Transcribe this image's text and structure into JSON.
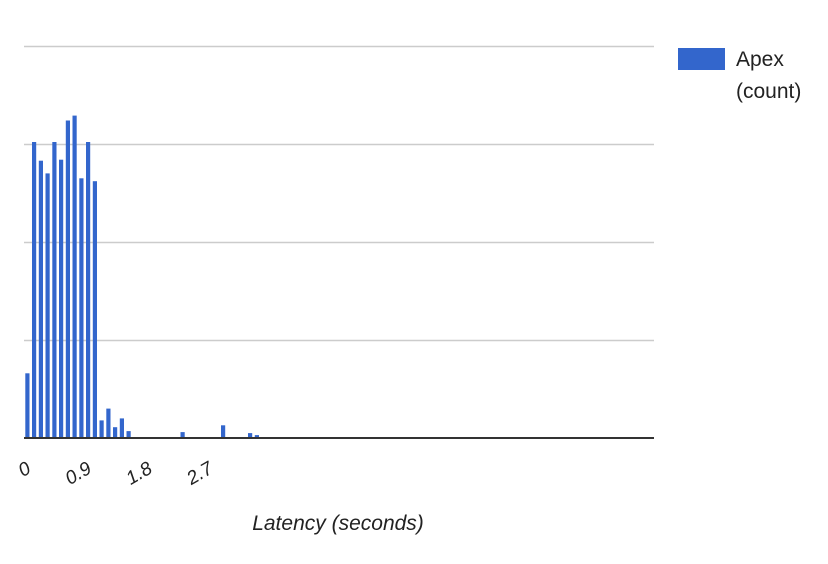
{
  "chart_data": {
    "type": "bar",
    "title": "",
    "xlabel": "Latency (seconds)",
    "ylabel": "",
    "x_tick_labels": [
      "0",
      "0.9",
      "1.8",
      "2.7"
    ],
    "x_ticks": [
      0,
      0.9,
      1.8,
      2.7
    ],
    "xlim": [
      0,
      10.4
    ],
    "ylim": [
      0,
      400
    ],
    "y_gridlines": [
      100,
      200,
      300,
      400
    ],
    "y_tick_labels_shown": false,
    "grid": true,
    "legend_position": "right",
    "series": [
      {
        "name": "Apex\n(count)",
        "color": "#3366cc",
        "x": [
          0.05,
          0.15,
          0.25,
          0.35,
          0.45,
          0.55,
          0.65,
          0.75,
          0.85,
          0.95,
          1.05,
          1.15,
          1.25,
          1.35,
          1.45,
          1.55,
          1.65,
          2.35,
          2.95,
          3.35,
          3.45
        ],
        "values": [
          66,
          302,
          283,
          270,
          302,
          284,
          324,
          329,
          265,
          302,
          262,
          18,
          30,
          11,
          20,
          7,
          0,
          6,
          13,
          5,
          3
        ]
      }
    ]
  }
}
